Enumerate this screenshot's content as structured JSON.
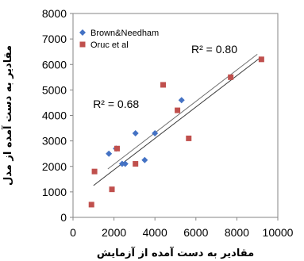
{
  "chart_data": {
    "type": "scatter",
    "xlabel": "مقادیر به دست آمده از آزمایش",
    "ylabel": "مقادیر به دست آمده از مدل",
    "xlim": [
      0,
      10000
    ],
    "ylim": [
      0,
      8000
    ],
    "xticks": [
      0,
      2000,
      4000,
      6000,
      8000,
      10000
    ],
    "yticks": [
      0,
      1000,
      2000,
      3000,
      4000,
      5000,
      6000,
      7000,
      8000
    ],
    "xtick_labels": [
      "0",
      "2000",
      "4000",
      "6000",
      "8000",
      "10000"
    ],
    "ytick_labels": [
      "0",
      "1000",
      "2000",
      "3000",
      "4000",
      "5000",
      "6000",
      "7000",
      "8000"
    ],
    "grid": false,
    "legend_position": "top-left",
    "series": [
      {
        "name": "Brown&Needham",
        "marker": "diamond",
        "color": "#4472c4",
        "x": [
          1750,
          2100,
          2400,
          2550,
          3050,
          3500,
          4000,
          5300
        ],
        "y": [
          2500,
          2700,
          2100,
          2100,
          3300,
          2250,
          3300,
          4600
        ],
        "trendline": {
          "x": [
            1700,
            9000
          ],
          "y": [
            1900,
            6400
          ]
        }
      },
      {
        "name": "Oruc et al",
        "marker": "square",
        "color": "#c0504d",
        "x": [
          900,
          1050,
          1900,
          2150,
          3050,
          4400,
          5100,
          5650,
          7700,
          9200
        ],
        "y": [
          500,
          1800,
          1100,
          2700,
          2100,
          5200,
          4200,
          3100,
          5500,
          6200
        ],
        "trendline": {
          "x": [
            1000,
            9200
          ],
          "y": [
            1250,
            6300
          ]
        }
      }
    ],
    "annotations": [
      {
        "text": "R² = 0.80",
        "x": 6900,
        "y": 6450
      },
      {
        "text": "R² = 0.68",
        "x": 2100,
        "y": 4300
      }
    ]
  }
}
